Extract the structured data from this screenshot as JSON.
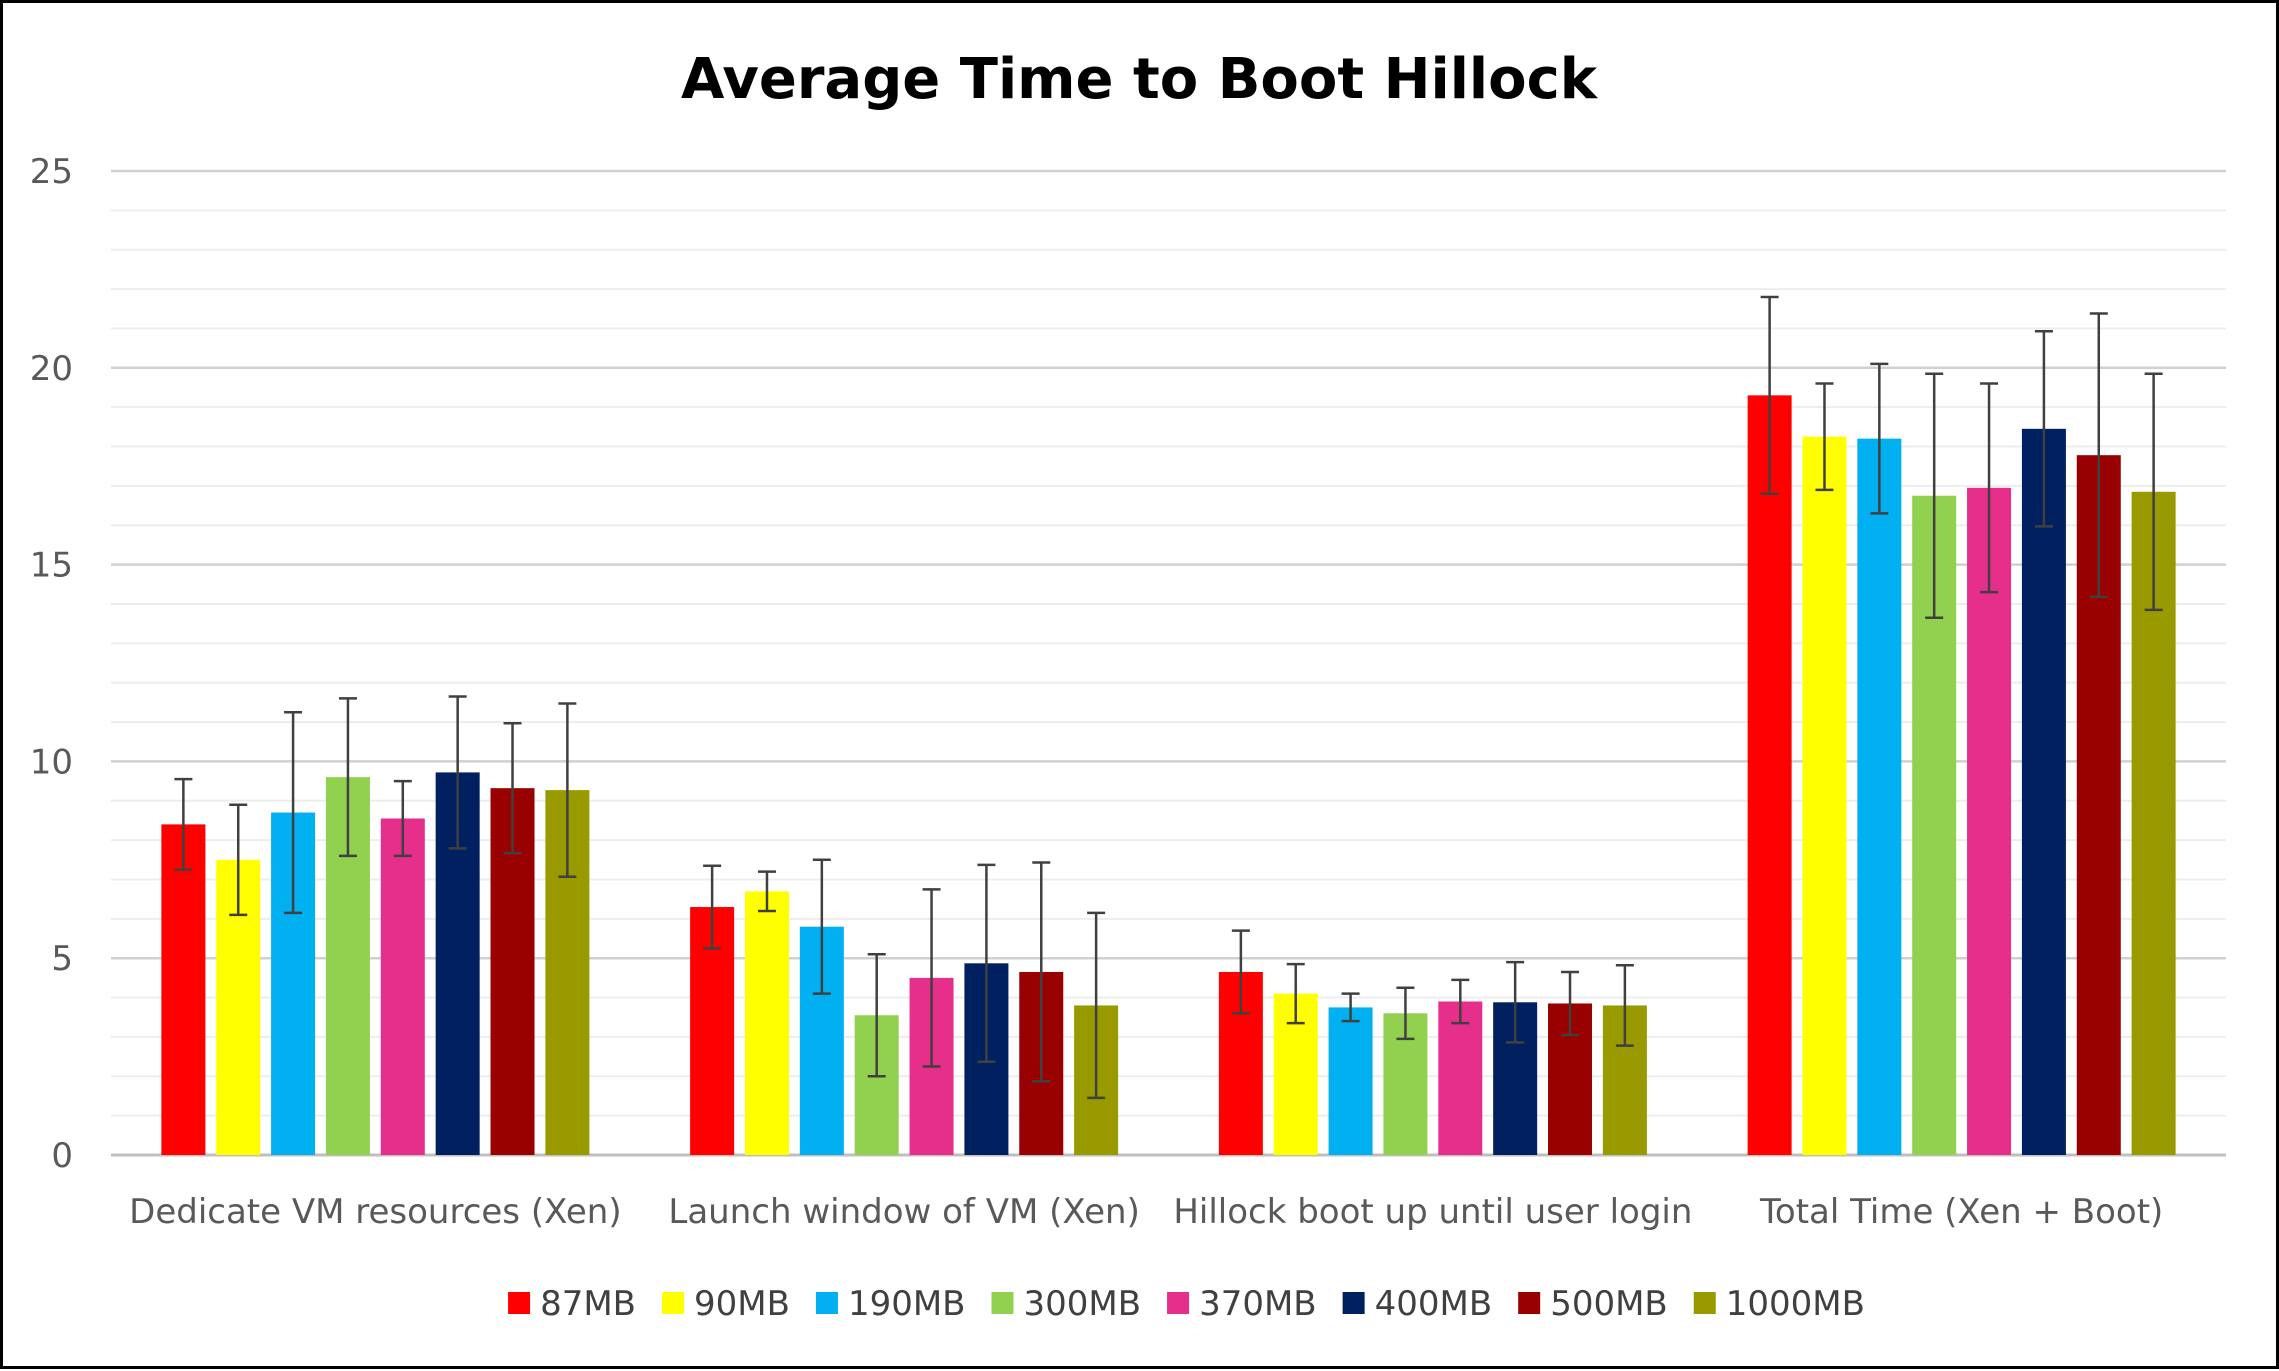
{
  "chart_data": {
    "type": "bar",
    "title": "Average Time to Boot Hillock",
    "xlabel": "",
    "ylabel": "",
    "ylim": [
      0,
      25
    ],
    "yticks": [
      0,
      5,
      10,
      15,
      20,
      25
    ],
    "grid": true,
    "legend_position": "bottom",
    "categories": [
      "Dedicate VM resources (Xen)",
      "Launch window of VM (Xen)",
      "Hillock boot up until user login",
      "Total Time (Xen + Boot)"
    ],
    "series": [
      {
        "name": "87MB",
        "color": "#FF0000",
        "values": [
          8.4,
          6.3,
          4.65,
          19.3
        ],
        "error": [
          1.15,
          1.05,
          1.05,
          2.5
        ]
      },
      {
        "name": "90MB",
        "color": "#FFFF00",
        "values": [
          7.5,
          6.7,
          4.1,
          18.25
        ],
        "error": [
          1.4,
          0.5,
          0.75,
          1.35
        ]
      },
      {
        "name": "190MB",
        "color": "#00B0F0",
        "values": [
          8.7,
          5.8,
          3.75,
          18.2
        ],
        "error": [
          2.55,
          1.7,
          0.35,
          1.9
        ]
      },
      {
        "name": "300MB",
        "color": "#92D050",
        "values": [
          9.6,
          3.55,
          3.6,
          16.75
        ],
        "error": [
          2.0,
          1.55,
          0.65,
          3.1
        ]
      },
      {
        "name": "370MB",
        "color": "#E62E8B",
        "values": [
          8.55,
          4.5,
          3.9,
          16.95
        ],
        "error": [
          0.95,
          2.25,
          0.55,
          2.65
        ]
      },
      {
        "name": "400MB",
        "color": "#002060",
        "values": [
          9.72,
          4.87,
          3.88,
          18.45
        ],
        "error": [
          1.93,
          2.5,
          1.02,
          2.48
        ]
      },
      {
        "name": "500MB",
        "color": "#990000",
        "values": [
          9.32,
          4.65,
          3.85,
          17.78
        ],
        "error": [
          1.65,
          2.78,
          0.8,
          3.6
        ]
      },
      {
        "name": "1000MB",
        "color": "#999900",
        "values": [
          9.27,
          3.8,
          3.8,
          16.85
        ],
        "error": [
          2.2,
          2.35,
          1.02,
          3.0
        ]
      }
    ],
    "error_bar_color": "#404040"
  }
}
